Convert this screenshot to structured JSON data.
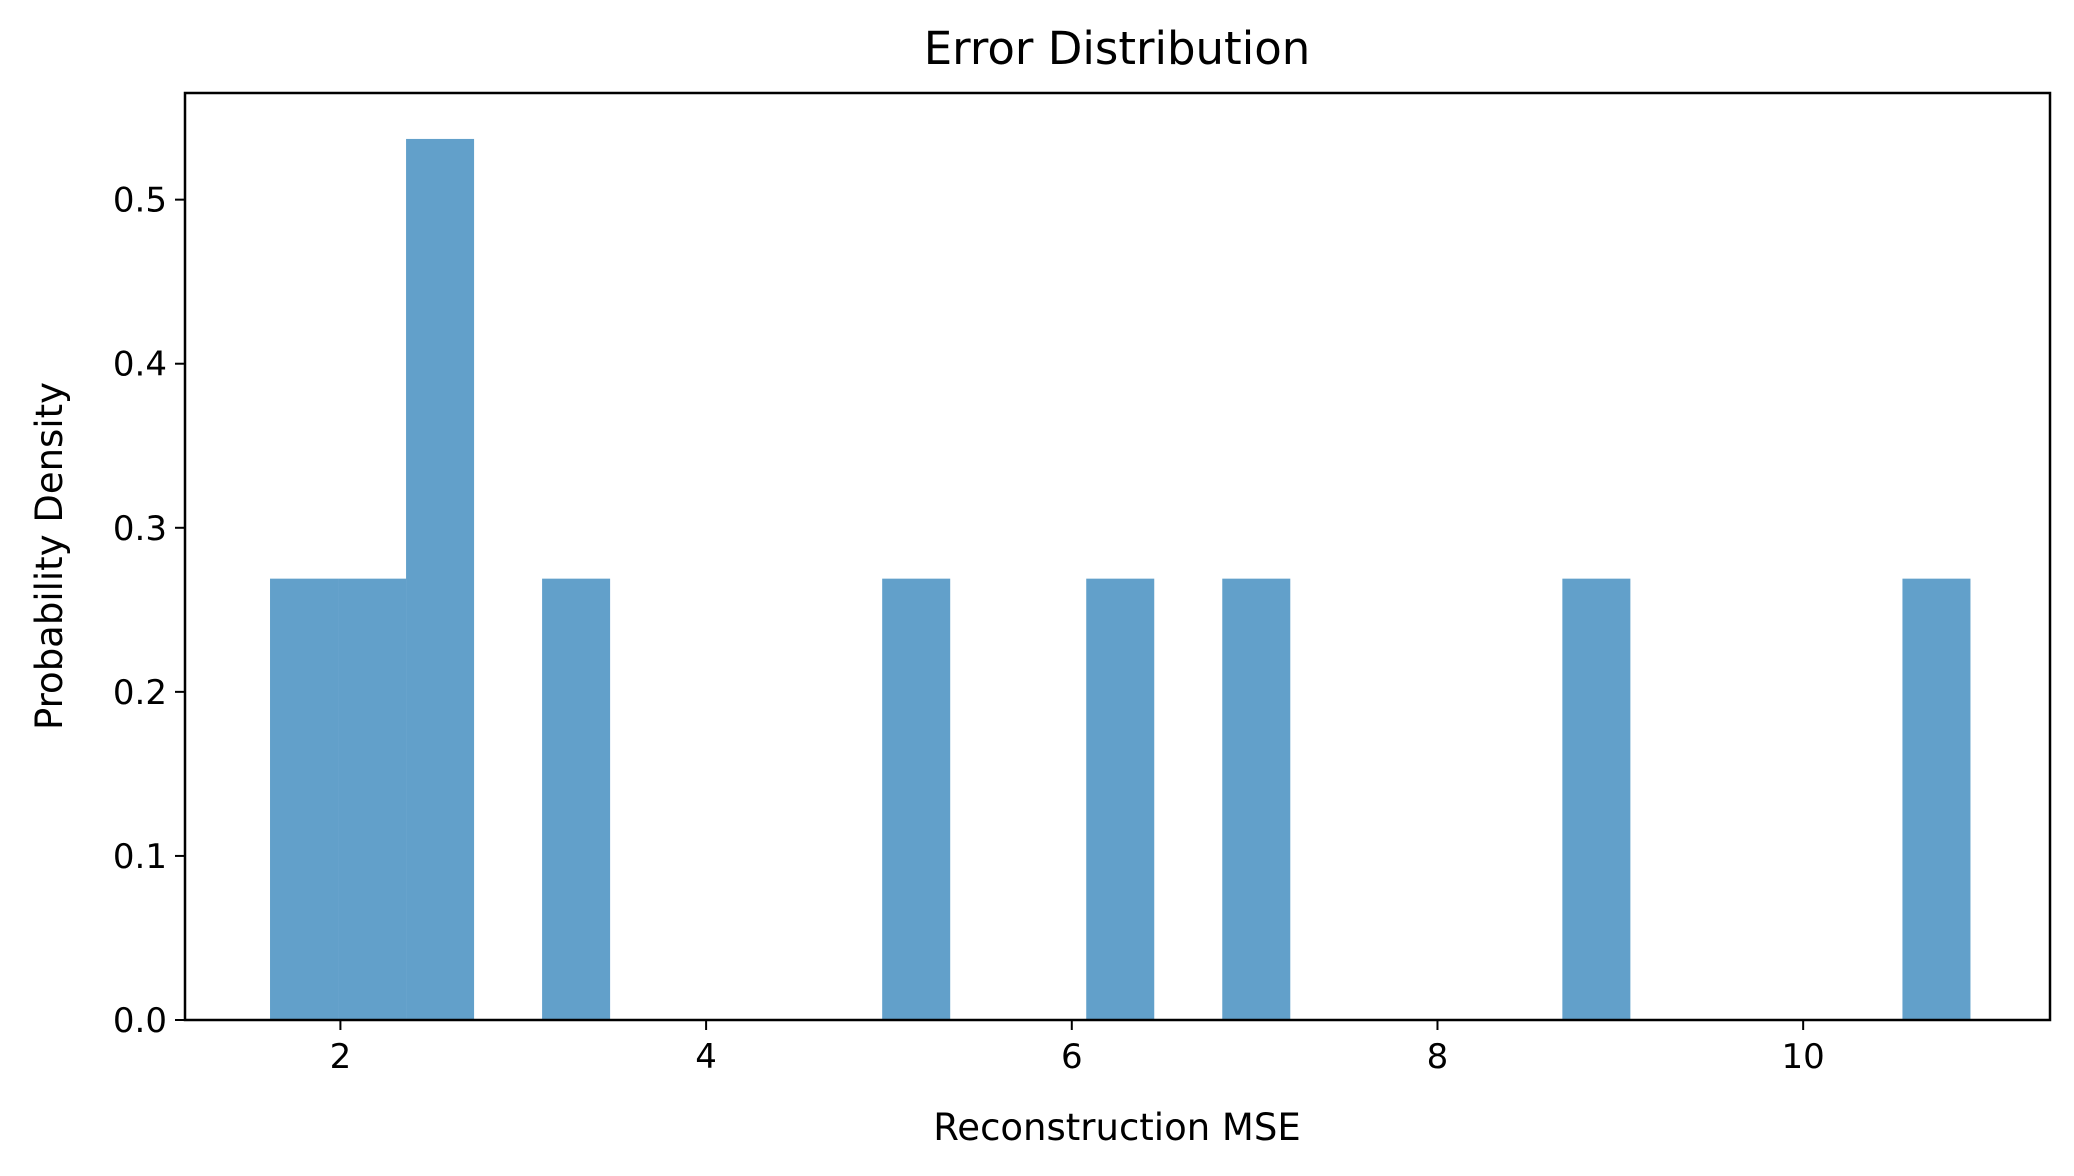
{
  "chart_data": {
    "type": "bar",
    "subtype": "histogram",
    "title": "Error Distribution",
    "xlabel": "Reconstruction MSE",
    "ylabel": "Probability Density",
    "xlim": [
      1.15,
      11.35
    ],
    "ylim": [
      0,
      0.565
    ],
    "xticks": [
      2,
      4,
      6,
      8,
      10
    ],
    "xtick_labels": [
      "2",
      "4",
      "6",
      "8",
      "10"
    ],
    "yticks": [
      0.0,
      0.1,
      0.2,
      0.3,
      0.4,
      0.5
    ],
    "ytick_labels": [
      "0.0",
      "0.1",
      "0.2",
      "0.3",
      "0.4",
      "0.5"
    ],
    "bar_color": "#1f77b4",
    "bar_opacity": 0.7,
    "grid": false,
    "bins": [
      {
        "x0": 1.615,
        "x1": 1.987,
        "density": 0.269
      },
      {
        "x0": 1.987,
        "x1": 2.359,
        "density": 0.269
      },
      {
        "x0": 2.359,
        "x1": 2.731,
        "density": 0.537
      },
      {
        "x0": 3.103,
        "x1": 3.475,
        "density": 0.269
      },
      {
        "x0": 4.963,
        "x1": 5.335,
        "density": 0.269
      },
      {
        "x0": 6.079,
        "x1": 6.451,
        "density": 0.269
      },
      {
        "x0": 6.823,
        "x1": 7.195,
        "density": 0.269
      },
      {
        "x0": 8.683,
        "x1": 9.055,
        "density": 0.269
      },
      {
        "x0": 10.543,
        "x1": 10.915,
        "density": 0.269
      }
    ]
  }
}
